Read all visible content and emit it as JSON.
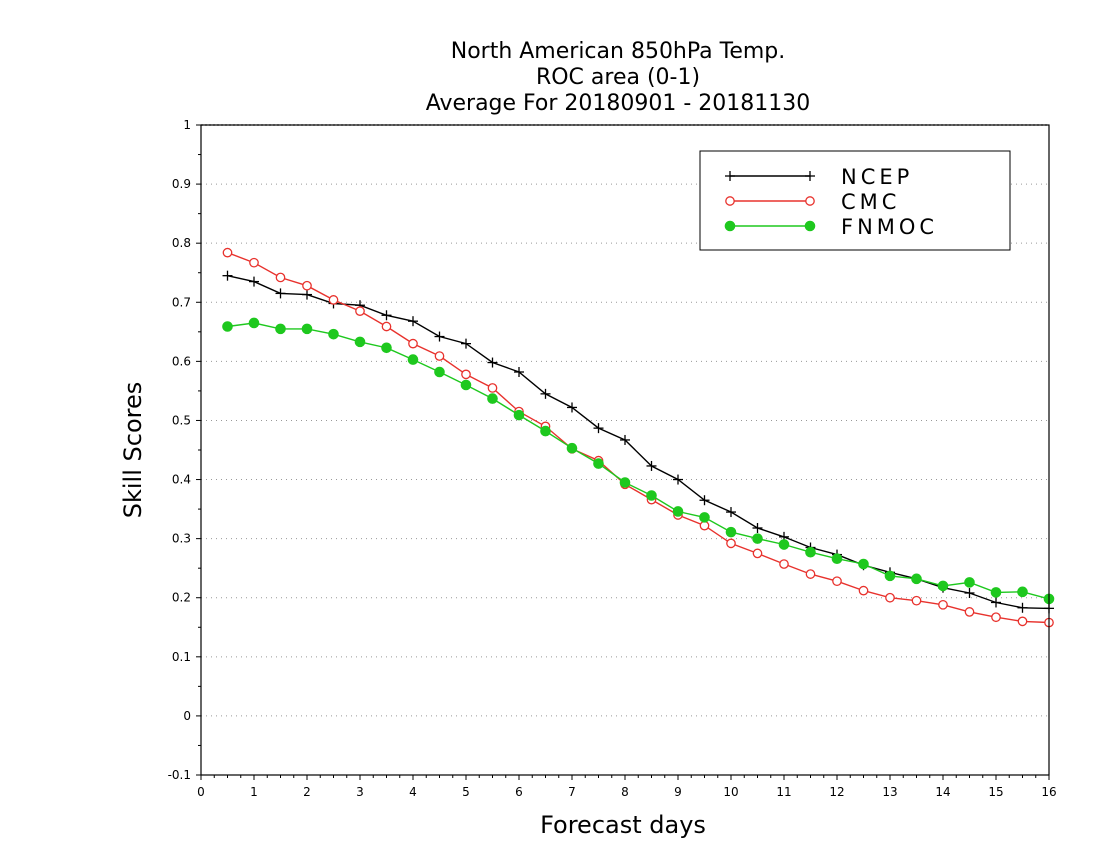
{
  "chart_data": {
    "type": "line",
    "title_lines": [
      "North American 850hPa Temp.",
      "ROC area (0-1)",
      "Average For 20180901 - 20181130"
    ],
    "xlabel": "Forecast days",
    "ylabel": "Skill Scores",
    "xlim": [
      0,
      16
    ],
    "ylim": [
      -0.1,
      1
    ],
    "xticks": [
      0,
      1,
      2,
      3,
      4,
      5,
      6,
      7,
      8,
      9,
      10,
      11,
      12,
      13,
      14,
      15,
      16
    ],
    "yticks": [
      -0.1,
      0,
      0.1,
      0.2,
      0.3,
      0.4,
      0.5,
      0.6,
      0.7,
      0.8,
      0.9,
      1
    ],
    "ytick_labels": [
      "-0.1",
      "0",
      "0.1",
      "0.2",
      "0.3",
      "0.4",
      "0.5",
      "0.6",
      "0.7",
      "0.8",
      "0.9",
      "1"
    ],
    "grid": "horizontal-dotted",
    "legend_position": "top-right",
    "x": [
      0.5,
      1,
      1.5,
      2,
      2.5,
      3,
      3.5,
      4,
      4.5,
      5,
      5.5,
      6,
      6.5,
      7,
      7.5,
      8,
      8.5,
      9,
      9.5,
      10,
      10.5,
      11,
      11.5,
      12,
      12.5,
      13,
      13.5,
      14,
      14.5,
      15,
      15.5,
      16
    ],
    "series": [
      {
        "name": "NCEP",
        "color": "#000000",
        "marker": "plus",
        "values": [
          0.745,
          0.735,
          0.715,
          0.713,
          0.698,
          0.695,
          0.678,
          0.668,
          0.642,
          0.63,
          0.598,
          0.582,
          0.545,
          0.522,
          0.487,
          0.467,
          0.423,
          0.4,
          0.365,
          0.345,
          0.318,
          0.303,
          0.285,
          0.273,
          0.255,
          0.243,
          0.232,
          0.217,
          0.208,
          0.192,
          0.183,
          0.182
        ]
      },
      {
        "name": "CMC",
        "color": "#e8322d",
        "marker": "open-circle",
        "values": [
          0.784,
          0.767,
          0.742,
          0.728,
          0.704,
          0.685,
          0.659,
          0.63,
          0.609,
          0.578,
          0.555,
          0.515,
          0.49,
          0.452,
          0.432,
          0.392,
          0.366,
          0.34,
          0.322,
          0.292,
          0.275,
          0.257,
          0.24,
          0.228,
          0.212,
          0.2,
          0.195,
          0.188,
          0.176,
          0.167,
          0.16,
          0.158
        ]
      },
      {
        "name": "FNMOC",
        "color": "#1ec81e",
        "marker": "filled-circle",
        "values": [
          0.659,
          0.665,
          0.655,
          0.655,
          0.646,
          0.633,
          0.623,
          0.603,
          0.582,
          0.56,
          0.537,
          0.509,
          0.482,
          0.453,
          0.427,
          0.395,
          0.373,
          0.346,
          0.336,
          0.311,
          0.3,
          0.29,
          0.277,
          0.266,
          0.257,
          0.237,
          0.232,
          0.22,
          0.226,
          0.209,
          0.21,
          0.198
        ]
      }
    ]
  }
}
